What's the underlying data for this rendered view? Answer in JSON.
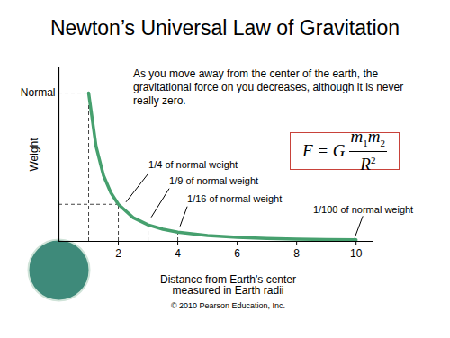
{
  "chart_data": {
    "type": "line",
    "title": "Newton’s Universal Law of Gravitation",
    "note": "As you move away from the center of the earth, the gravitational force on you decreases, although it is never really zero.",
    "formula": {
      "left": "F = G",
      "numerator": [
        [
          "m",
          "1"
        ],
        [
          "m",
          "2"
        ]
      ],
      "denominator": [
        "R",
        "2"
      ]
    },
    "x_label": "Distance from Earth's center\nmeasured in Earth radii",
    "y_label": "Weight",
    "credit": "© 2010 Pearson Education, Inc.",
    "x": [
      1,
      1.25,
      1.5,
      1.75,
      2,
      2.5,
      3,
      3.5,
      4,
      5,
      6,
      7,
      8,
      9,
      10
    ],
    "values": [
      1,
      0.64,
      0.444,
      0.327,
      0.25,
      0.16,
      0.111,
      0.082,
      0.0625,
      0.04,
      0.0278,
      0.0204,
      0.0156,
      0.0123,
      0.01
    ],
    "color": "#46a06e",
    "xlim": [
      0,
      10.6
    ],
    "ylim": [
      0,
      1.17
    ],
    "xticks": [
      2,
      4,
      6,
      8,
      10
    ],
    "yticks": [
      {
        "value": 1,
        "label": "Normal"
      }
    ],
    "annotations": [
      {
        "text": "1/4 of normal weight",
        "x": 2,
        "y": 0.25
      },
      {
        "text": "1/9 of normal weight",
        "x": 3,
        "y": 0.111
      },
      {
        "text": "1/16 of normal weight",
        "x": 4,
        "y": 0.0625
      },
      {
        "text": "1/100 of normal weight",
        "x": 10,
        "y": 0.01
      }
    ]
  }
}
